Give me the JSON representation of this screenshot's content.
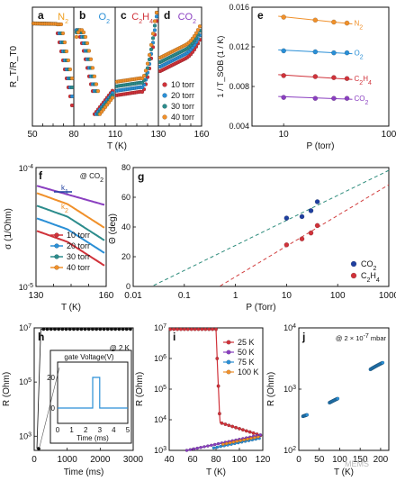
{
  "colors": {
    "red": "#d0323a",
    "blue": "#2a8fd6",
    "teal": "#2c8c8c",
    "orange": "#f0902a",
    "purple": "#8a3fc0",
    "navy": "#1f3fa0",
    "redDash": "#d24040",
    "tealDash": "#2e8c7c",
    "black": "#111111",
    "orangeText": "#f0a020",
    "blueText": "#2a8fd6",
    "redText": "#d0323a",
    "purpleText": "#8a3fc0"
  },
  "panel_a_d": {
    "ylabel": "R_T/R_T0",
    "xlabel": "T (K)",
    "xticks": [
      "50",
      "80",
      "110",
      "130",
      "160"
    ],
    "legend": [
      "10 torr",
      "20 torr",
      "30 torr",
      "40 torr"
    ],
    "gases": [
      {
        "letter": "a",
        "gas_main": "N",
        "gas_sub": "2",
        "color_key": "orangeText"
      },
      {
        "letter": "b",
        "gas_main": "O",
        "gas_sub": "2",
        "color_key": "blueText"
      },
      {
        "letter": "c",
        "gas_main": "C",
        "gas_sub": "2",
        "gas_main2": "H",
        "gas_sub2": "4",
        "color_key": "redText"
      },
      {
        "letter": "d",
        "gas_main": "CO",
        "gas_sub": "2",
        "color_key": "purpleText"
      }
    ]
  },
  "chart_data": [
    {
      "id": "e",
      "type": "scatter",
      "letter": "e",
      "ylabel": "1 / T_SOB (1 / K)",
      "xlabel": "P (torr)",
      "xscale": "log",
      "xlim": [
        5,
        100
      ],
      "ylim": [
        0.004,
        0.016
      ],
      "yticks": [
        "0.004",
        "0.008",
        "0.012",
        "0.016"
      ],
      "xticks": [
        "10",
        "100"
      ],
      "x": [
        10,
        20,
        30,
        40
      ],
      "series": [
        {
          "name": "N2",
          "label_main": "N",
          "label_sub": "2",
          "values": [
            0.015,
            0.0147,
            0.0145,
            0.0144
          ],
          "color_key": "orange"
        },
        {
          "name": "O2",
          "label_main": "O",
          "label_sub": "2",
          "values": [
            0.0116,
            0.0115,
            0.0114,
            0.0114
          ],
          "color_key": "blue"
        },
        {
          "name": "C2H4",
          "label_main": "C",
          "label_sub": "2",
          "label_main2": "H",
          "label_sub2": "4",
          "values": [
            0.0091,
            0.009,
            0.0089,
            0.0088
          ],
          "color_key": "red"
        },
        {
          "name": "CO2",
          "label_main": "CO",
          "label_sub": "2",
          "values": [
            0.0069,
            0.0068,
            0.0068,
            0.0068
          ],
          "color_key": "purple"
        }
      ]
    },
    {
      "id": "f",
      "type": "line",
      "letter": "f",
      "annotation": "@ CO",
      "annotation_sub": "2",
      "ylabel": "σ (1/Ohm)",
      "xlabel": "T (K)",
      "yscale": "log",
      "xlim": [
        130,
        160
      ],
      "ylim": [
        1e-05,
        0.0001
      ],
      "xticks": [
        "130",
        "160"
      ],
      "ytick_top": "10",
      "ytick_top_exp": "-4",
      "ytick_bottom": "10",
      "ytick_bottom_exp": "-5",
      "k1_label": "k",
      "k1_sub": "1",
      "k2_label": "k",
      "k2_sub": "2",
      "legend": [
        "10 torr",
        "20 torr",
        "30 torr",
        "40 torr"
      ]
    },
    {
      "id": "g",
      "type": "scatter",
      "letter": "g",
      "ylabel": "Θ (deg)",
      "xlabel": "P (Torr)",
      "xscale": "log",
      "xlim": [
        0.01,
        1000
      ],
      "ylim": [
        0,
        80
      ],
      "yticks": [
        "0",
        "20",
        "40",
        "60",
        "80"
      ],
      "xticks": [
        "0.01",
        "0.1",
        "1",
        "10",
        "100",
        "1000"
      ],
      "series": [
        {
          "name": "CO2",
          "label_main": "CO",
          "label_sub": "2",
          "x": [
            10,
            20,
            30,
            40
          ],
          "values": [
            46,
            47,
            51,
            57
          ],
          "color_key": "navy",
          "fit_color_key": "tealDash"
        },
        {
          "name": "C2H4",
          "label_main": "C",
          "label_sub": "2",
          "label_main2": "H",
          "label_sub2": "4",
          "x": [
            10,
            20,
            30,
            40
          ],
          "values": [
            28,
            32,
            36,
            41
          ],
          "color_key": "red",
          "fit_color_key": "redDash"
        }
      ]
    },
    {
      "id": "h",
      "type": "line",
      "letter": "h",
      "annotation": "@ 2 K",
      "ylabel": "R (Ohm)",
      "xlabel": "Time (ms)",
      "yscale": "log",
      "xlim": [
        0,
        3000
      ],
      "ylim": [
        300,
        10000000
      ],
      "xticks": [
        "0",
        "1000",
        "2000",
        "3000"
      ],
      "ytick_base": "10",
      "ytick_exps": [
        "3",
        "5",
        "7"
      ],
      "inset": {
        "title": "gate Voltage(V)",
        "xlabel": "Time (ms)",
        "xticks": [
          "0",
          "1",
          "2",
          "3",
          "4",
          "5"
        ],
        "yticks": [
          "0",
          "20"
        ],
        "x": [
          0,
          2.5,
          2.5,
          3.0,
          3.0,
          5
        ],
        "values": [
          0,
          0,
          20,
          20,
          0,
          0
        ]
      }
    },
    {
      "id": "i",
      "type": "line",
      "letter": "i",
      "ylabel": "R (Ohm)",
      "xlabel": "T (K)",
      "yscale": "log",
      "xlim": [
        40,
        120
      ],
      "ylim": [
        1000,
        10000000
      ],
      "xticks": [
        "40",
        "60",
        "80",
        "100",
        "120"
      ],
      "ytick_base": "10",
      "ytick_exps": [
        "3",
        "4",
        "5",
        "6",
        "7"
      ],
      "legend": [
        "25 K",
        "50 K",
        "75 K",
        "100 K"
      ]
    },
    {
      "id": "j",
      "type": "scatter",
      "letter": "j",
      "annotation": "@ 2 × 10",
      "annotation_exp": "-7",
      "annotation_unit": " mbar",
      "ylabel": "R (Ohm)",
      "xlabel": "T (K)",
      "yscale": "log",
      "xlim": [
        0,
        220
      ],
      "ylim": [
        100,
        10000
      ],
      "xticks": [
        "0",
        "50",
        "100",
        "150",
        "200"
      ],
      "ytick_base": "10",
      "ytick_exps": [
        "2",
        "3",
        "4"
      ]
    }
  ],
  "watermark": "MEMS"
}
